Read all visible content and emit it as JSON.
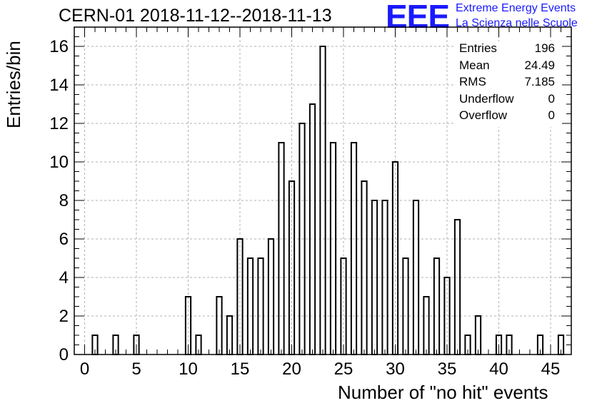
{
  "chart_data": {
    "type": "bar",
    "title": "CERN-01 2018-11-12--2018-11-13",
    "xlabel": "Number of \"no hit\" events",
    "ylabel": "Entries/bin",
    "xlim": [
      -1,
      47
    ],
    "ylim": [
      0,
      17
    ],
    "xticks": [
      "0",
      "5",
      "10",
      "15",
      "20",
      "25",
      "30",
      "35",
      "40",
      "45"
    ],
    "yticks": [
      "0",
      "2",
      "4",
      "6",
      "8",
      "10",
      "12",
      "14",
      "16"
    ],
    "grid": true,
    "bins": [
      {
        "x": 1,
        "y": 1
      },
      {
        "x": 3,
        "y": 1
      },
      {
        "x": 5,
        "y": 1
      },
      {
        "x": 10,
        "y": 3
      },
      {
        "x": 11,
        "y": 1
      },
      {
        "x": 13,
        "y": 3
      },
      {
        "x": 14,
        "y": 2
      },
      {
        "x": 15,
        "y": 6
      },
      {
        "x": 16,
        "y": 5
      },
      {
        "x": 17,
        "y": 5
      },
      {
        "x": 18,
        "y": 6
      },
      {
        "x": 19,
        "y": 11
      },
      {
        "x": 20,
        "y": 9
      },
      {
        "x": 21,
        "y": 12
      },
      {
        "x": 22,
        "y": 13
      },
      {
        "x": 23,
        "y": 16
      },
      {
        "x": 24,
        "y": 11
      },
      {
        "x": 25,
        "y": 5
      },
      {
        "x": 26,
        "y": 11
      },
      {
        "x": 27,
        "y": 9
      },
      {
        "x": 28,
        "y": 8
      },
      {
        "x": 29,
        "y": 8
      },
      {
        "x": 30,
        "y": 10
      },
      {
        "x": 31,
        "y": 5
      },
      {
        "x": 32,
        "y": 8
      },
      {
        "x": 33,
        "y": 3
      },
      {
        "x": 34,
        "y": 5
      },
      {
        "x": 35,
        "y": 4
      },
      {
        "x": 36,
        "y": 7
      },
      {
        "x": 37,
        "y": 1
      },
      {
        "x": 38,
        "y": 2
      },
      {
        "x": 40,
        "y": 1
      },
      {
        "x": 41,
        "y": 1
      },
      {
        "x": 44,
        "y": 1
      },
      {
        "x": 46,
        "y": 1
      }
    ],
    "stats": [
      {
        "name": "Entries",
        "value": "196"
      },
      {
        "name": "Mean",
        "value": "24.49"
      },
      {
        "name": "RMS",
        "value": "7.185"
      },
      {
        "name": "Underflow",
        "value": "0"
      },
      {
        "name": "Overflow",
        "value": "0"
      }
    ]
  },
  "logo": {
    "mark": "EEE",
    "line1": "Extreme Energy Events",
    "line2": "La Scienza nelle Scuole",
    "color": "#1a1aff"
  }
}
